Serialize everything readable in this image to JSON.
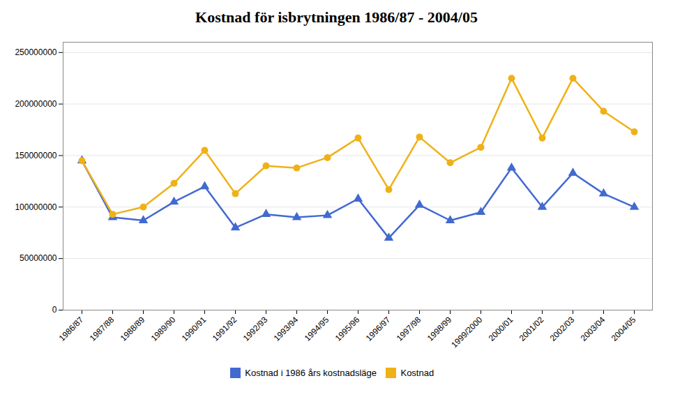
{
  "chart_data": {
    "type": "line",
    "title": "Kostnad för isbrytningen 1986/87 - 2004/05",
    "categories": [
      "1986/87",
      "1987/88",
      "1988/89",
      "1989/90",
      "1990/91",
      "1991/92",
      "1992/93",
      "1993/94",
      "1994/95",
      "1995/96",
      "1996/97",
      "1997/98",
      "1998/99",
      "1999/2000",
      "2000/01",
      "2001/02",
      "2002/03",
      "2003/04",
      "2004/05"
    ],
    "series": [
      {
        "name": "Kostnad i 1986 års kostnadsläge",
        "marker": "triangle",
        "values": [
          145000000,
          90000000,
          87000000,
          105000000,
          120000000,
          80000000,
          93000000,
          90000000,
          92000000,
          108000000,
          70000000,
          102000000,
          87000000,
          95000000,
          138000000,
          100000000,
          133000000,
          113000000,
          100000000
        ]
      },
      {
        "name": "Kostnad",
        "marker": "circle",
        "values": [
          145000000,
          93000000,
          100000000,
          123000000,
          155000000,
          113000000,
          140000000,
          138000000,
          148000000,
          167000000,
          117000000,
          168000000,
          143000000,
          158000000,
          225000000,
          167000000,
          225000000,
          193000000,
          173000000
        ]
      }
    ],
    "ylim": [
      0,
      260000000
    ],
    "yticks": [
      0,
      50000000,
      100000000,
      150000000,
      200000000,
      250000000
    ],
    "grid": true,
    "legend": "bottom"
  }
}
